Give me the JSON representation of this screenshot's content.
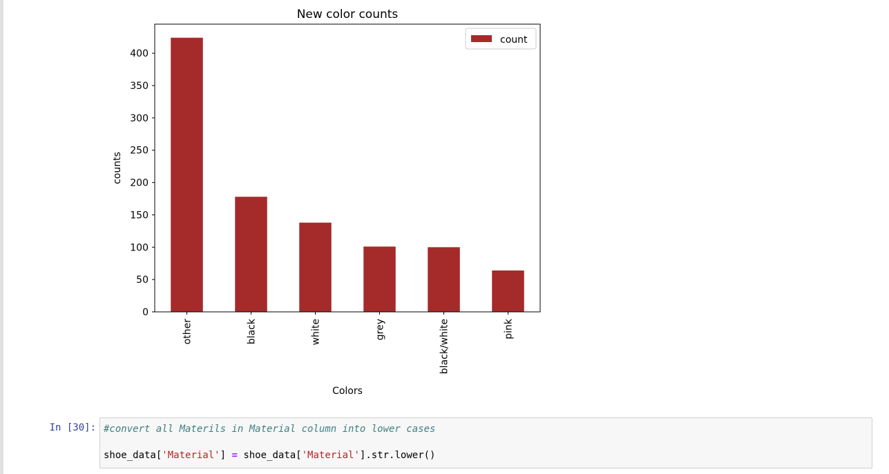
{
  "notebook": {
    "prompt": "In [30]:",
    "code": {
      "comment": "#convert all Materils in Material column into lower cases",
      "line2_var": "shoe_data[",
      "line2_str1": "'Material'",
      "line2_mid": "] ",
      "line2_op": "=",
      "line2_rhs_var": " shoe_data[",
      "line2_str2": "'Material'",
      "line2_end": "].str.lower()"
    }
  },
  "chart_data": {
    "type": "bar",
    "title": "New color counts",
    "xlabel": "Colors",
    "ylabel": "counts",
    "categories": [
      "other",
      "black",
      "white",
      "grey",
      "black/white",
      "pink"
    ],
    "series": [
      {
        "name": "count",
        "values": [
          424,
          178,
          138,
          101,
          100,
          64
        ],
        "color": "#a52a2a"
      }
    ],
    "ylim": [
      0,
      445
    ],
    "yticks": [
      0,
      50,
      100,
      150,
      200,
      250,
      300,
      350,
      400
    ],
    "legend": "top-right",
    "grid": false
  }
}
